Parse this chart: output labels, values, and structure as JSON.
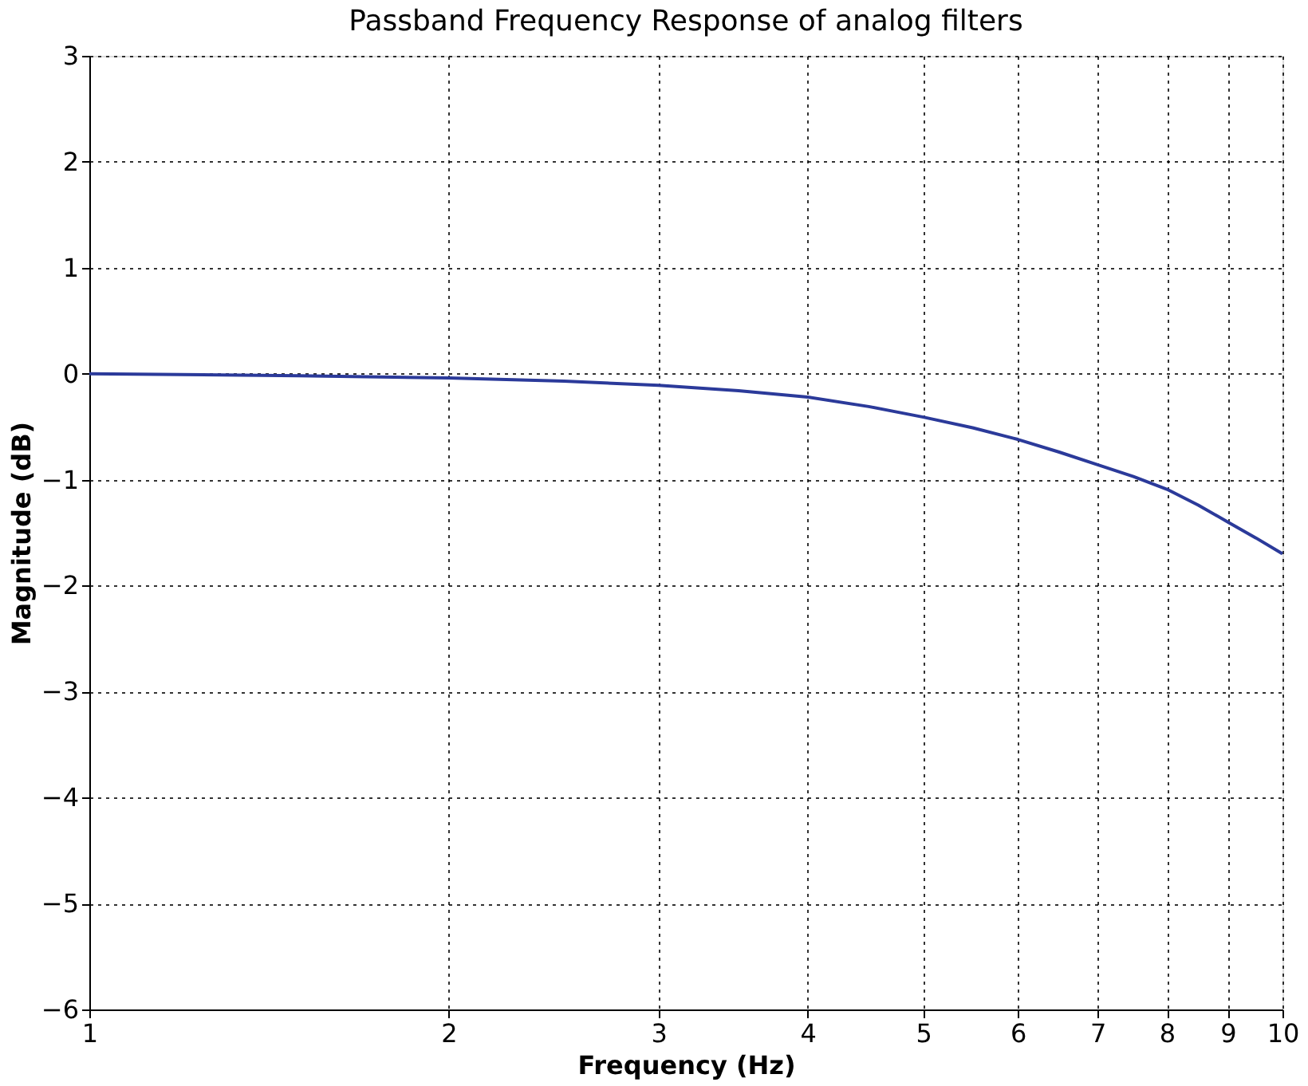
{
  "chart_data": {
    "type": "line",
    "title": "Passband Frequency Response of analog filters",
    "xlabel": "Frequency (Hz)",
    "ylabel": "Magnitude (dB)",
    "x": [
      1,
      1.5,
      2,
      2.5,
      3,
      3.5,
      4,
      4.5,
      5,
      5.5,
      6,
      6.5,
      7,
      7.5,
      8,
      8.5,
      9,
      9.5,
      10
    ],
    "series": [
      {
        "color": "#2b3a9a",
        "values": [
          0,
          -0.02,
          -0.04,
          -0.07,
          -0.11,
          -0.16,
          -0.22,
          -0.31,
          -0.41,
          -0.51,
          -0.62,
          -0.74,
          -0.86,
          -0.97,
          -1.09,
          -1.24,
          -1.4,
          -1.55,
          -1.7
        ]
      }
    ],
    "xlim": [
      1,
      10
    ],
    "xticks": [
      1,
      2,
      3,
      4,
      5,
      6,
      7,
      8,
      9,
      10
    ],
    "ylim": [
      -6,
      3
    ],
    "yticks": [
      -6,
      -5,
      -4,
      -3,
      -2,
      -1,
      0,
      1,
      2,
      3
    ],
    "log": "x",
    "grid": true,
    "line_style": "solid",
    "marker": "none"
  }
}
